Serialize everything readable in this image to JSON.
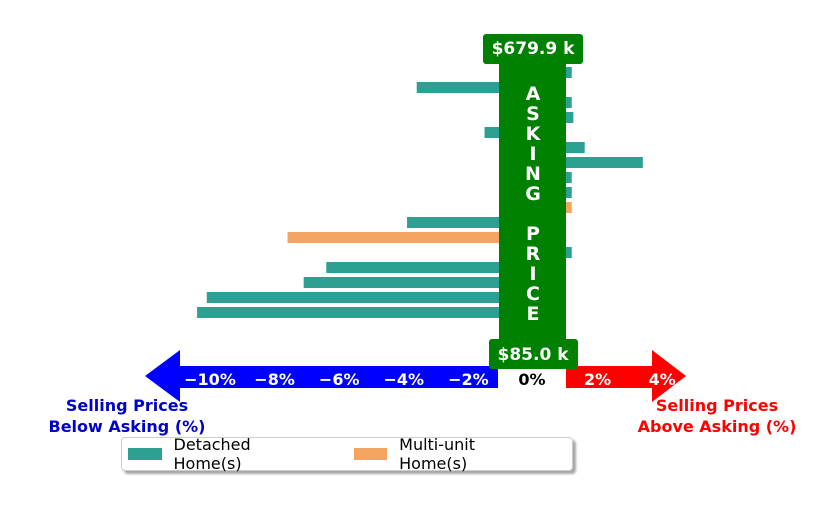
{
  "chart_data": {
    "type": "bar",
    "orientation": "horizontal",
    "xlim": [
      -11,
      4.4
    ],
    "xticks": [
      {
        "value": -10,
        "label": "−10%"
      },
      {
        "value": -8,
        "label": "−8%"
      },
      {
        "value": -6,
        "label": "−6%"
      },
      {
        "value": -4,
        "label": "−4%"
      },
      {
        "value": -2,
        "label": "−2%"
      },
      {
        "value": 0,
        "label": "0%"
      },
      {
        "value": 2,
        "label": "2%"
      },
      {
        "value": 4,
        "label": "4%"
      }
    ],
    "legend": {
      "placement": "bottom-left",
      "entries": [
        {
          "label": "Detached Home(s)",
          "color": "#2ca093"
        },
        {
          "label": "Multi-unit Home(s)",
          "color": "#f4a460"
        }
      ]
    },
    "bars": [
      {
        "value": 1.2,
        "type": "detached"
      },
      {
        "value": -3.6,
        "type": "detached"
      },
      {
        "value": 1.2,
        "type": "detached"
      },
      {
        "value": 1.25,
        "type": "detached"
      },
      {
        "value": -1.5,
        "type": "detached"
      },
      {
        "value": 1.6,
        "type": "detached"
      },
      {
        "value": 3.4,
        "type": "detached"
      },
      {
        "value": 1.2,
        "type": "detached"
      },
      {
        "value": 1.2,
        "type": "detached"
      },
      {
        "value": 1.2,
        "type": "multi"
      },
      {
        "value": -3.9,
        "type": "detached"
      },
      {
        "value": -7.6,
        "type": "multi"
      },
      {
        "value": 1.2,
        "type": "detached"
      },
      {
        "value": -6.4,
        "type": "detached"
      },
      {
        "value": -7.1,
        "type": "detached"
      },
      {
        "value": -10.1,
        "type": "detached"
      },
      {
        "value": -10.4,
        "type": "detached"
      }
    ],
    "asking_price": {
      "label_letters": [
        "A",
        "S",
        "K",
        "I",
        "N",
        "G",
        "",
        "P",
        "R",
        "I",
        "C",
        "E"
      ],
      "max_label": "$679.9 k",
      "min_label": "$85.0 k",
      "color": "#008000"
    },
    "below_label": [
      "Selling Prices",
      "Below Asking (%)"
    ],
    "above_label": [
      "Selling Prices",
      "Above Asking (%)"
    ],
    "below_color": "#0000ff",
    "above_color": "#ff0000"
  }
}
